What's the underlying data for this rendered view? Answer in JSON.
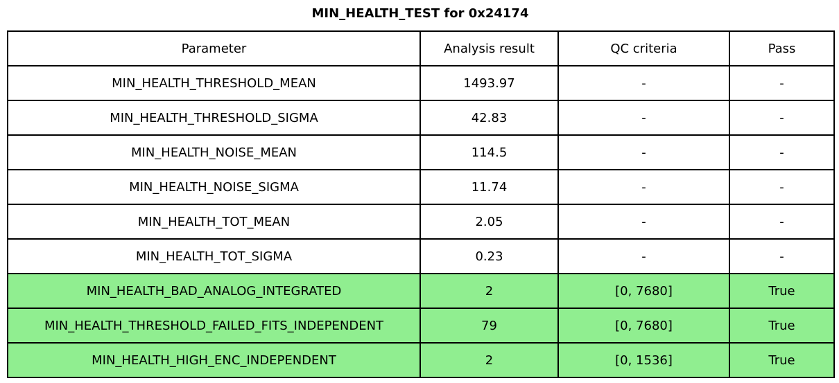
{
  "chart_data": {
    "type": "table",
    "title": "MIN_HEALTH_TEST for 0x24174",
    "columns": [
      "Parameter",
      "Analysis result",
      "QC criteria",
      "Pass"
    ],
    "rows": [
      {
        "parameter": "MIN_HEALTH_THRESHOLD_MEAN",
        "analysis_result": "1493.97",
        "qc_criteria": "-",
        "pass": "-",
        "highlighted": false
      },
      {
        "parameter": "MIN_HEALTH_THRESHOLD_SIGMA",
        "analysis_result": "42.83",
        "qc_criteria": "-",
        "pass": "-",
        "highlighted": false
      },
      {
        "parameter": "MIN_HEALTH_NOISE_MEAN",
        "analysis_result": "114.5",
        "qc_criteria": "-",
        "pass": "-",
        "highlighted": false
      },
      {
        "parameter": "MIN_HEALTH_NOISE_SIGMA",
        "analysis_result": "11.74",
        "qc_criteria": "-",
        "pass": "-",
        "highlighted": false
      },
      {
        "parameter": "MIN_HEALTH_TOT_MEAN",
        "analysis_result": "2.05",
        "qc_criteria": "-",
        "pass": "-",
        "highlighted": false
      },
      {
        "parameter": "MIN_HEALTH_TOT_SIGMA",
        "analysis_result": "0.23",
        "qc_criteria": "-",
        "pass": "-",
        "highlighted": false
      },
      {
        "parameter": "MIN_HEALTH_BAD_ANALOG_INTEGRATED",
        "analysis_result": "2",
        "qc_criteria": "[0, 7680]",
        "pass": "True",
        "highlighted": true
      },
      {
        "parameter": "MIN_HEALTH_THRESHOLD_FAILED_FITS_INDEPENDENT",
        "analysis_result": "79",
        "qc_criteria": "[0, 7680]",
        "pass": "True",
        "highlighted": true
      },
      {
        "parameter": "MIN_HEALTH_HIGH_ENC_INDEPENDENT",
        "analysis_result": "2",
        "qc_criteria": "[0, 1536]",
        "pass": "True",
        "highlighted": true
      }
    ],
    "colors": {
      "pass_row_background": "#90ee90",
      "row_background": "#ffffff",
      "border": "#000000",
      "text": "#000000"
    },
    "layout": {
      "text_align": "center",
      "grid": "all-borders"
    }
  }
}
